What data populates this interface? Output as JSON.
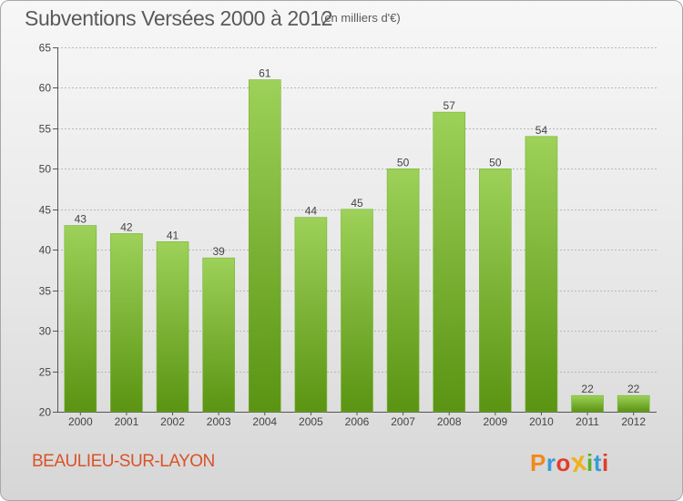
{
  "header": {
    "title": "Subventions Versées 2000 à 2012",
    "unit_note": "(en milliers d'€)"
  },
  "footer": {
    "commune": "BEAULIEU-SUR-LAYON",
    "brand": "Proxiti",
    "brand_letters": [
      {
        "char": "P",
        "color": "#f08a1c"
      },
      {
        "char": "r",
        "color": "#3a9ad9"
      },
      {
        "char": "o",
        "color": "#e23c2b"
      },
      {
        "char": "x",
        "color": "#f0b21c"
      },
      {
        "char": "i",
        "color": "#58b031"
      },
      {
        "char": "t",
        "color": "#3a9ad9"
      },
      {
        "char": "i",
        "color": "#e23c2b"
      }
    ]
  },
  "colors": {
    "bar_top": "#9dd159",
    "bar_bottom": "#5a9412",
    "grid": "#b8b8b8",
    "commune_text": "#d9532a"
  },
  "chart_data": {
    "type": "bar",
    "title": "Subventions Versées 2000 à 2012",
    "subtitle": "(en milliers d'€)",
    "xlabel": "",
    "ylabel": "",
    "categories": [
      "2000",
      "2001",
      "2002",
      "2003",
      "2004",
      "2005",
      "2006",
      "2007",
      "2008",
      "2009",
      "2010",
      "2011",
      "2012"
    ],
    "values": [
      43,
      42,
      41,
      39,
      61,
      44,
      45,
      50,
      57,
      50,
      54,
      22,
      22
    ],
    "ylim": [
      20,
      65
    ],
    "yticks": [
      20,
      25,
      30,
      35,
      40,
      45,
      50,
      55,
      60,
      65
    ],
    "grid": true,
    "data_labels": true
  }
}
